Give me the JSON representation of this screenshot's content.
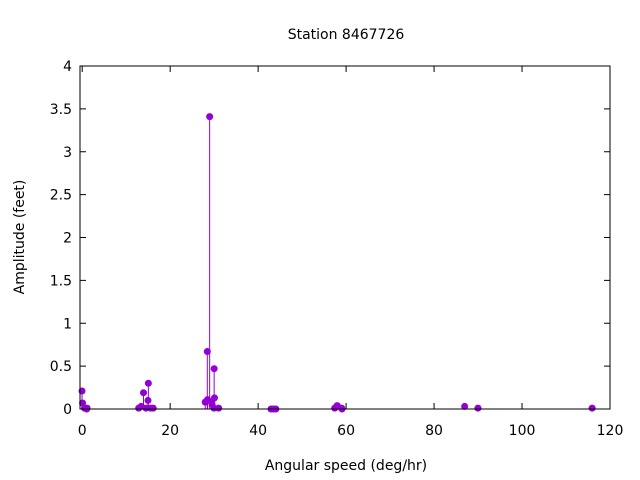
{
  "chart_data": {
    "type": "impulse-scatter",
    "title": "Station 8467726",
    "xlabel": "Angular speed (deg/hr)",
    "ylabel": "Amplitude (feet)",
    "xlim": [
      -0.5,
      120
    ],
    "ylim": [
      0,
      4
    ],
    "xticks": [
      0,
      20,
      40,
      60,
      80,
      100,
      120
    ],
    "yticks": [
      0,
      0.5,
      1,
      1.5,
      2,
      2.5,
      3,
      3.5,
      4
    ],
    "ytick_labels": [
      "0",
      "0.5",
      "1",
      "1.5",
      "2",
      "2.5",
      "3",
      "3.5",
      "4"
    ],
    "grid": false,
    "color": "#9400d3",
    "x": [
      -0.04,
      0.08,
      0.54,
      1.02,
      1.1,
      12.85,
      13.4,
      13.94,
      14.5,
      14.96,
      15.04,
      15.59,
      16.14,
      27.97,
      28.44,
      28.51,
      28.98,
      29.46,
      29.53,
      29.96,
      30.0,
      30.08,
      31.02,
      42.93,
      43.48,
      44.03,
      57.42,
      57.97,
      58.98,
      59.07,
      86.95,
      89.98,
      115.94
    ],
    "y": [
      0.21,
      0.07,
      0.01,
      0.0,
      0.01,
      0.01,
      0.03,
      0.19,
      0.01,
      0.1,
      0.3,
      0.01,
      0.01,
      0.08,
      0.67,
      0.11,
      3.41,
      0.08,
      0.05,
      0.01,
      0.47,
      0.13,
      0.01,
      0.0,
      0.0,
      0.0,
      0.01,
      0.04,
      0.01,
      0.0,
      0.03,
      0.01,
      0.01
    ]
  }
}
